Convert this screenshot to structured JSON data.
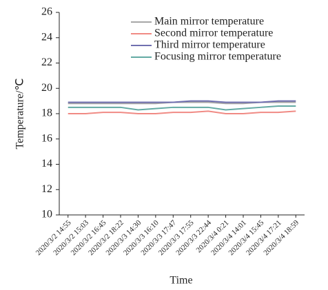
{
  "chart_data": {
    "type": "line",
    "x_label": "Time",
    "y_label": "Temperature/℃",
    "categories": [
      "2020/3/2 14:55",
      "2020/3/2 15:03",
      "2020/3/2 16:45",
      "2020/3/2 18:22",
      "2020/3/3 14:30",
      "2020/3/3 16:10",
      "2020/3/3 17:47",
      "2020/3/3 17:55",
      "2020/3/3 22:44",
      "2020/3/4 0:21",
      "2020/3/4 14:01",
      "2020/3/4 15:45",
      "2020/3/4 17:21",
      "2020/3/4 18:59"
    ],
    "series": [
      {
        "name": "Main mirror temperature",
        "color": "#a6a6a6",
        "values": [
          18.8,
          18.8,
          18.8,
          18.8,
          18.8,
          18.8,
          18.9,
          18.9,
          18.9,
          18.8,
          18.8,
          18.9,
          18.9,
          18.9
        ]
      },
      {
        "name": "Second mirror temperature",
        "color": "#f08a84",
        "values": [
          18.0,
          18.0,
          18.1,
          18.1,
          18.0,
          18.0,
          18.1,
          18.1,
          18.2,
          18.0,
          18.0,
          18.1,
          18.1,
          18.2
        ]
      },
      {
        "name": "Third mirror temperature",
        "color": "#6f6fb0",
        "values": [
          18.9,
          18.9,
          18.9,
          18.9,
          18.9,
          18.9,
          18.9,
          19.0,
          19.0,
          18.9,
          18.9,
          18.9,
          19.0,
          19.0
        ]
      },
      {
        "name": "Focusing mirror temperature",
        "color": "#62aaa3",
        "values": [
          18.5,
          18.5,
          18.5,
          18.5,
          18.3,
          18.4,
          18.5,
          18.5,
          18.5,
          18.3,
          18.4,
          18.5,
          18.6,
          18.6
        ]
      }
    ],
    "ylim": [
      10,
      26
    ],
    "yticks": [
      10,
      12,
      14,
      16,
      18,
      20,
      22,
      24,
      26
    ],
    "grid": false,
    "legend": "upper-right"
  }
}
